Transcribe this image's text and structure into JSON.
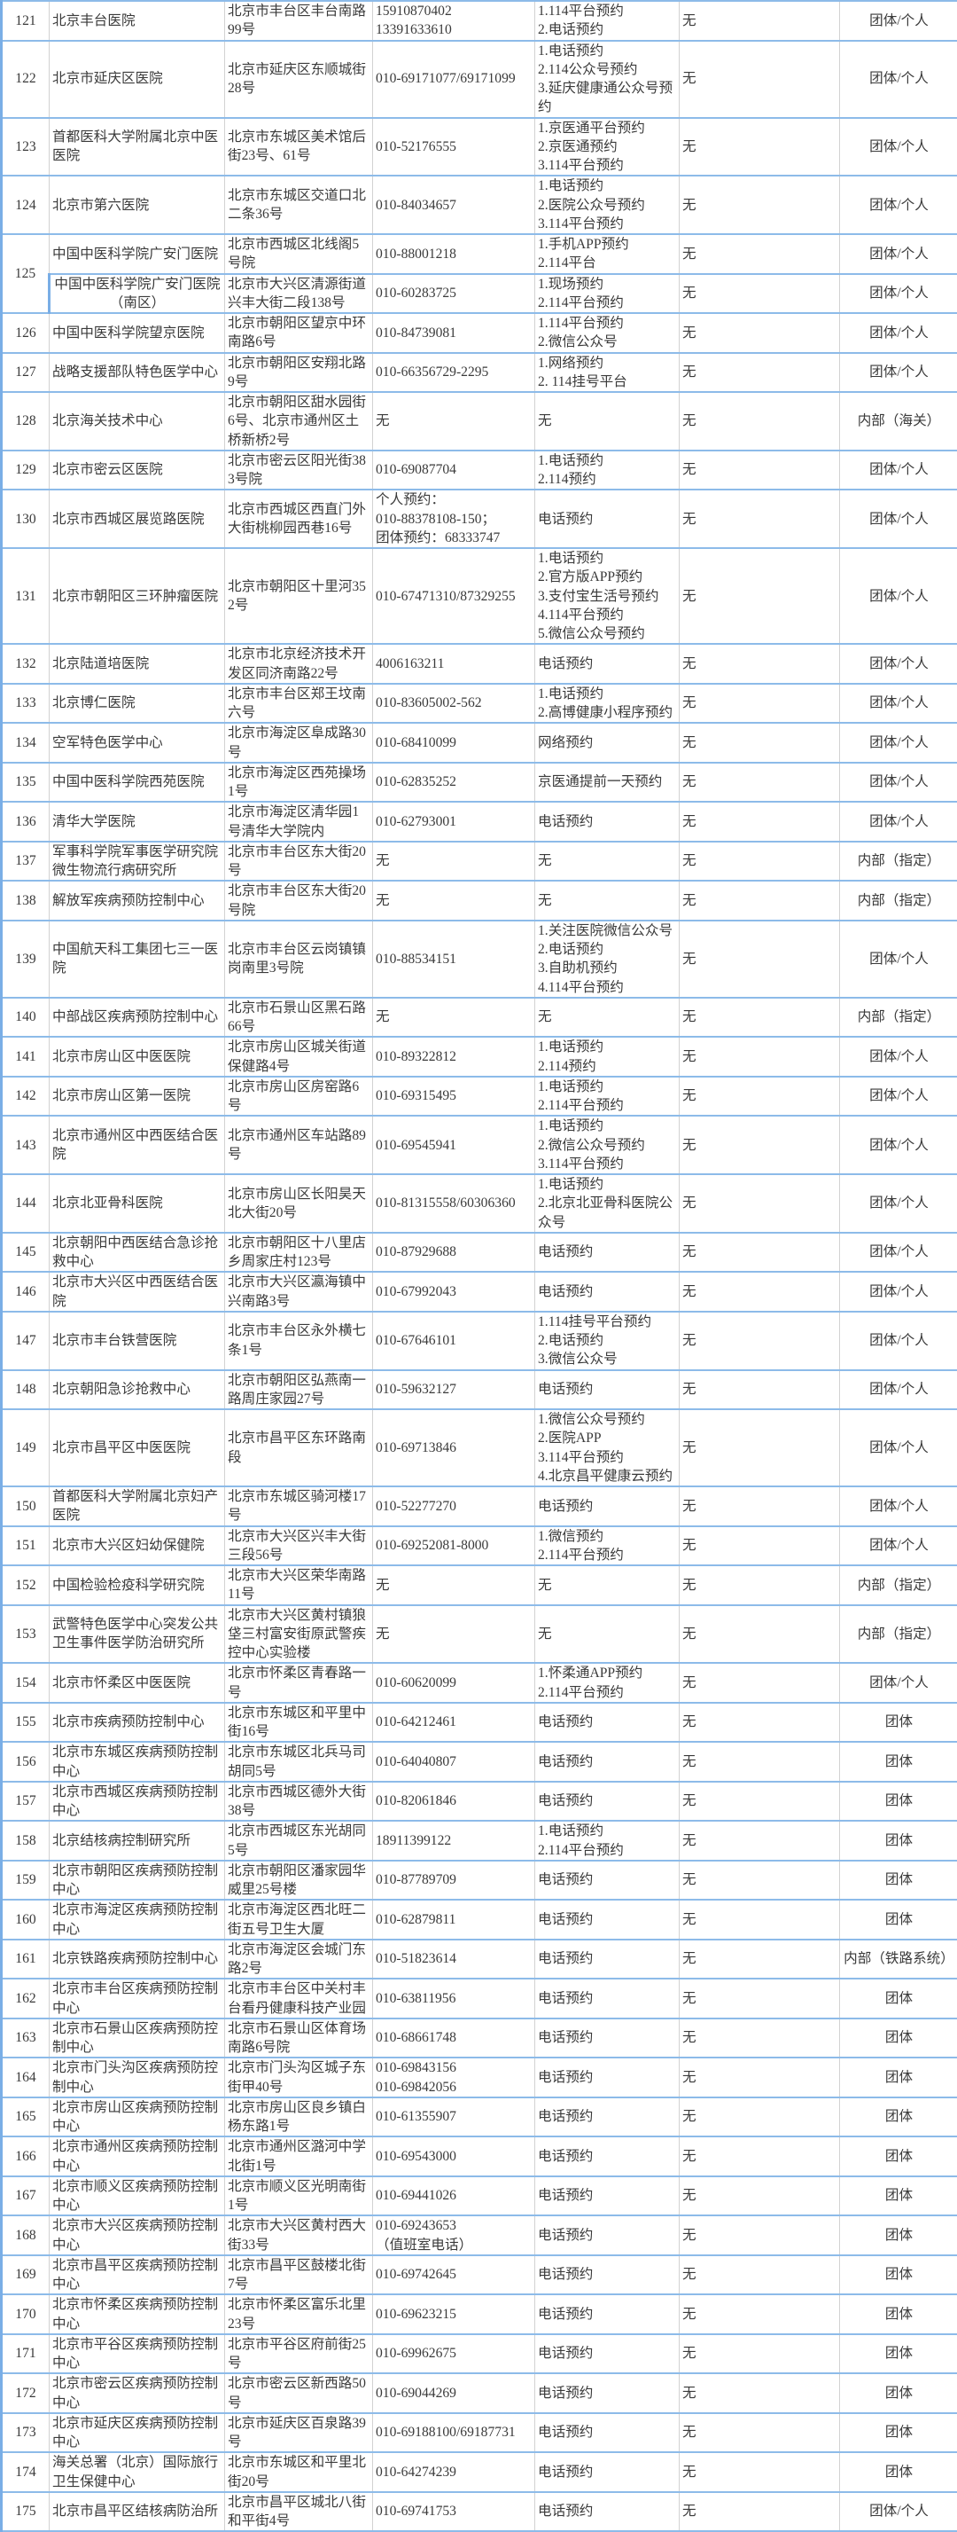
{
  "colors": {
    "row_border": "#8dbbe9",
    "col_border": "#d2d2d2",
    "text": "#3a3a3a"
  },
  "rows": [
    {
      "no": "121",
      "name": "北京丰台医院",
      "address": "北京市丰台区丰台南路99号",
      "phone": "15910870402\n13391633610",
      "booking": "1.114平台预约\n2.电话预约",
      "other": "无",
      "type": "团体/个人"
    },
    {
      "no": "122",
      "name": "北京市延庆区医院",
      "address": "北京市延庆区东顺城街28号",
      "phone": "010-69171077/69171099",
      "booking": "1.电话预约\n2.114公众号预约\n3.延庆健康通公众号预约",
      "other": "无",
      "type": "团体/个人"
    },
    {
      "no": "123",
      "name": "首都医科大学附属北京中医医院",
      "address": "北京市东城区美术馆后街23号、61号",
      "phone": "010-52176555",
      "booking": "1.京医通平台预约\n2.京医通预约\n3.114平台预约",
      "other": "无",
      "type": "团体/个人"
    },
    {
      "no": "124",
      "name": "北京市第六医院",
      "address": "北京市东城区交道口北二条36号",
      "phone": "010-84034657",
      "booking": "1.电话预约\n2.医院公众号预约\n3.114平台预约",
      "other": "无",
      "type": "团体/个人"
    },
    {
      "no": "125",
      "name": "中国中医科学院广安门医院",
      "address": "北京市西城区北线阁5号院",
      "phone": "010-88001218",
      "booking": "1.手机APP预约\n2.114平台",
      "other": "无",
      "type": "团体/个人"
    },
    {
      "no": null,
      "name": "中国中医科学院广安门医院（南区）",
      "address": "北京市大兴区清源街道兴丰大街二段138号",
      "phone": "010-60283725",
      "booking": "1.现场预约\n2.114平台预约",
      "other": "无",
      "type": "团体/个人"
    },
    {
      "no": "126",
      "name": "中国中医科学院望京医院",
      "address": "北京市朝阳区望京中环南路6号",
      "phone": "010-84739081",
      "booking": "1.114平台预约\n2.微信公众号",
      "other": "无",
      "type": "团体/个人"
    },
    {
      "no": "127",
      "name": "战略支援部队特色医学中心",
      "address": "北京市朝阳区安翔北路9号",
      "phone": "010-66356729-2295",
      "booking": "1.网络预约\n2. 114挂号平台",
      "other": "无",
      "type": "团体/个人"
    },
    {
      "no": "128",
      "name": "北京海关技术中心",
      "address": "北京市朝阳区甜水园街6号、北京市通州区土桥新桥2号",
      "phone": "无",
      "booking": "无",
      "other": "无",
      "type": "内部（海关）"
    },
    {
      "no": "129",
      "name": "北京市密云区医院",
      "address": "北京市密云区阳光街383号院",
      "phone": "010-69087704",
      "booking": "1.电话预约\n2.114预约",
      "other": "无",
      "type": "团体/个人"
    },
    {
      "no": "130",
      "name": "北京市西城区展览路医院",
      "address": "北京市西城区西直门外大街桃柳园西巷16号",
      "phone": "个人预约：\n010-88378108-150；\n团体预约：68333747",
      "booking": "电话预约",
      "other": "无",
      "type": "团体/个人"
    },
    {
      "no": "131",
      "name": "北京市朝阳区三环肿瘤医院",
      "address": "北京市朝阳区十里河352号",
      "phone": "010-67471310/87329255",
      "booking": "1.电话预约\n2.官方版APP预约\n3.支付宝生活号预约\n4.114平台预约\n5.微信公众号预约",
      "other": "无",
      "type": "团体/个人"
    },
    {
      "no": "132",
      "name": "北京陆道培医院",
      "address": "北京市北京经济技术开发区同济南路22号",
      "phone": "4006163211",
      "booking": "电话预约",
      "other": "无",
      "type": "团体/个人"
    },
    {
      "no": "133",
      "name": "北京博仁医院",
      "address": "北京市丰台区郑王坟南六号",
      "phone": "010-83605002-562",
      "booking": "1.电话预约\n2.高博健康小程序预约",
      "other": "无",
      "type": "团体/个人"
    },
    {
      "no": "134",
      "name": "空军特色医学中心",
      "address": "北京市海淀区阜成路30号",
      "phone": "010-68410099",
      "booking": "网络预约",
      "other": "无",
      "type": "团体/个人"
    },
    {
      "no": "135",
      "name": "中国中医科学院西苑医院",
      "address": "北京市海淀区西苑操场1号",
      "phone": "010-62835252",
      "booking": "京医通提前一天预约",
      "other": "无",
      "type": "团体/个人"
    },
    {
      "no": "136",
      "name": "清华大学医院",
      "address": "北京市海淀区清华园1号清华大学院内",
      "phone": "010-62793001",
      "booking": "电话预约",
      "other": "无",
      "type": "团体/个人"
    },
    {
      "no": "137",
      "name": "军事科学院军事医学研究院微生物流行病研究所",
      "address": "北京市丰台区东大街20号",
      "phone": "无",
      "booking": "无",
      "other": "无",
      "type": "内部（指定）"
    },
    {
      "no": "138",
      "name": "解放军疾病预防控制中心",
      "address": "北京市丰台区东大街20号院",
      "phone": "无",
      "booking": "无",
      "other": "无",
      "type": "内部（指定）"
    },
    {
      "no": "139",
      "name": "中国航天科工集团七三一医院",
      "address": "北京市丰台区云岗镇镇岗南里3号院",
      "phone": "010-88534151",
      "booking": "1.关注医院微信公众号\n2.电话预约\n3.自助机预约\n4.114平台预约",
      "other": "无",
      "type": "团体/个人"
    },
    {
      "no": "140",
      "name": "中部战区疾病预防控制中心",
      "address": "北京市石景山区黑石路66号",
      "phone": "无",
      "booking": "无",
      "other": "无",
      "type": "内部（指定）"
    },
    {
      "no": "141",
      "name": "北京市房山区中医医院",
      "address": "北京市房山区城关街道保健路4号",
      "phone": "010-89322812",
      "booking": "1.电话预约\n2.114预约",
      "other": "无",
      "type": "团体/个人"
    },
    {
      "no": "142",
      "name": "北京市房山区第一医院",
      "address": "北京市房山区房窑路6号",
      "phone": "010-69315495",
      "booking": "1.电话预约\n2.114平台预约",
      "other": "无",
      "type": "团体/个人"
    },
    {
      "no": "143",
      "name": "北京市通州区中西医结合医院",
      "address": "北京市通州区车站路89号",
      "phone": "010-69545941",
      "booking": "1.电话预约\n2.微信公众号预约\n3.114平台预约",
      "other": "无",
      "type": "团体/个人"
    },
    {
      "no": "144",
      "name": "北京北亚骨科医院",
      "address": "北京市房山区长阳昊天北大街20号",
      "phone": "010-81315558/60306360",
      "booking": "1.电话预约\n2.北京北亚骨科医院公众号",
      "other": "无",
      "type": "团体/个人"
    },
    {
      "no": "145",
      "name": "北京朝阳中西医结合急诊抢救中心",
      "address": "北京市朝阳区十八里店乡周家庄村123号",
      "phone": "010-87929688",
      "booking": "电话预约",
      "other": "无",
      "type": "团体/个人"
    },
    {
      "no": "146",
      "name": "北京市大兴区中西医结合医院",
      "address": "北京市大兴区瀛海镇中兴南路3号",
      "phone": "010-67992043",
      "booking": "电话预约",
      "other": "无",
      "type": "团体/个人"
    },
    {
      "no": "147",
      "name": "北京市丰台铁营医院",
      "address": "北京市丰台区永外横七条1号",
      "phone": "010-67646101",
      "booking": "1.114挂号平台预约\n2.电话预约\n3.微信公众号",
      "other": "无",
      "type": "团体/个人"
    },
    {
      "no": "148",
      "name": "北京朝阳急诊抢救中心",
      "address": "北京市朝阳区弘燕南一路周庄家园27号",
      "phone": "010-59632127",
      "booking": "电话预约",
      "other": "无",
      "type": "团体/个人"
    },
    {
      "no": "149",
      "name": "北京市昌平区中医医院",
      "address": "北京市昌平区东环路南段",
      "phone": "010-69713846",
      "booking": "1.微信公众号预约\n2.医院APP\n3.114平台预约\n4.北京昌平健康云预约",
      "other": "无",
      "type": "团体/个人"
    },
    {
      "no": "150",
      "name": "首都医科大学附属北京妇产医院",
      "address": "北京市东城区骑河楼17号",
      "phone": "010-52277270",
      "booking": "电话预约",
      "other": "无",
      "type": "团体/个人"
    },
    {
      "no": "151",
      "name": "北京市大兴区妇幼保健院",
      "address": "北京市大兴区兴丰大街三段56号",
      "phone": "010-69252081-8000",
      "booking": "1.微信预约\n2.114平台预约",
      "other": "无",
      "type": "团体/个人"
    },
    {
      "no": "152",
      "name": "中国检验检疫科学研究院",
      "address": "北京市大兴区荣华南路11号",
      "phone": "无",
      "booking": "无",
      "other": "无",
      "type": "内部（指定）"
    },
    {
      "no": "153",
      "name": "武警特色医学中心突发公共卫生事件医学防治研究所",
      "address": "北京市大兴区黄村镇狼垡三村富安街原武警疾控中心实验楼",
      "phone": "无",
      "booking": "无",
      "other": "无",
      "type": "内部（指定）"
    },
    {
      "no": "154",
      "name": "北京市怀柔区中医医院",
      "address": "北京市怀柔区青春路一号",
      "phone": "010-60620099",
      "booking": "1.怀柔通APP预约\n2.114平台预约",
      "other": "无",
      "type": "团体/个人"
    },
    {
      "no": "155",
      "name": "北京市疾病预防控制中心",
      "address": "北京市东城区和平里中街16号",
      "phone": "010-64212461",
      "booking": "电话预约",
      "other": "无",
      "type": "团体"
    },
    {
      "no": "156",
      "name": "北京市东城区疾病预防控制中心",
      "address": "北京市东城区北兵马司胡同5号",
      "phone": "010-64040807",
      "booking": "电话预约",
      "other": "无",
      "type": "团体"
    },
    {
      "no": "157",
      "name": "北京市西城区疾病预防控制中心",
      "address": "北京市西城区德外大街38号",
      "phone": "010-82061846",
      "booking": "电话预约",
      "other": "无",
      "type": "团体"
    },
    {
      "no": "158",
      "name": "北京结核病控制研究所",
      "address": "北京市西城区东光胡同5号",
      "phone": "18911399122",
      "booking": "1.电话预约\n2.114平台预约",
      "other": "无",
      "type": "团体"
    },
    {
      "no": "159",
      "name": "北京市朝阳区疾病预防控制中心",
      "address": "北京市朝阳区潘家园华威里25号楼",
      "phone": "010-87789709",
      "booking": "电话预约",
      "other": "无",
      "type": "团体"
    },
    {
      "no": "160",
      "name": "北京市海淀区疾病预防控制中心",
      "address": "北京市海淀区西北旺二街五号卫生大厦",
      "phone": "010-62879811",
      "booking": "电话预约",
      "other": "无",
      "type": "团体"
    },
    {
      "no": "161",
      "name": "北京铁路疾病预防控制中心",
      "address": "北京市海淀区会城门东路2号",
      "phone": "010-51823614",
      "booking": "电话预约",
      "other": "无",
      "type": "内部（铁路系统）"
    },
    {
      "no": "162",
      "name": "北京市丰台区疾病预防控制中心",
      "address": "北京市丰台区中关村丰台看丹健康科技产业园",
      "phone": "010-63811956",
      "booking": "电话预约",
      "other": "无",
      "type": "团体"
    },
    {
      "no": "163",
      "name": "北京市石景山区疾病预防控制中心",
      "address": "北京市石景山区体育场南路6号院",
      "phone": "010-68661748",
      "booking": "电话预约",
      "other": "无",
      "type": "团体"
    },
    {
      "no": "164",
      "name": "北京市门头沟区疾病预防控制中心",
      "address": "北京市门头沟区城子东街甲40号",
      "phone": "010-69843156\n010-69842056",
      "booking": "电话预约",
      "other": "无",
      "type": "团体"
    },
    {
      "no": "165",
      "name": "北京市房山区疾病预防控制中心",
      "address": "北京市房山区良乡镇白杨东路1号",
      "phone": "010-61355907",
      "booking": "电话预约",
      "other": "无",
      "type": "团体"
    },
    {
      "no": "166",
      "name": "北京市通州区疾病预防控制中心",
      "address": "北京市通州区潞河中学北街1号",
      "phone": "010-69543000",
      "booking": "电话预约",
      "other": "无",
      "type": "团体"
    },
    {
      "no": "167",
      "name": "北京市顺义区疾病预防控制中心",
      "address": "北京市顺义区光明南街1号",
      "phone": "010-69441026",
      "booking": "电话预约",
      "other": "无",
      "type": "团体"
    },
    {
      "no": "168",
      "name": "北京市大兴区疾病预防控制中心",
      "address": "北京市大兴区黄村西大街33号",
      "phone": "010-69243653\n（值班室电话）",
      "booking": "电话预约",
      "other": "无",
      "type": "团体"
    },
    {
      "no": "169",
      "name": "北京市昌平区疾病预防控制中心",
      "address": "北京市昌平区鼓楼北街7号",
      "phone": "010-69742645",
      "booking": "电话预约",
      "other": "无",
      "type": "团体"
    },
    {
      "no": "170",
      "name": "北京市怀柔区疾病预防控制中心",
      "address": "北京市怀柔区富乐北里23号",
      "phone": "010-69623215",
      "booking": "电话预约",
      "other": "无",
      "type": "团体"
    },
    {
      "no": "171",
      "name": "北京市平谷区疾病预防控制中心",
      "address": "北京市平谷区府前街25号",
      "phone": "010-69962675",
      "booking": "电话预约",
      "other": "无",
      "type": "团体"
    },
    {
      "no": "172",
      "name": "北京市密云区疾病预防控制中心",
      "address": "北京市密云区新西路50号",
      "phone": "010-69044269",
      "booking": "电话预约",
      "other": "无",
      "type": "团体"
    },
    {
      "no": "173",
      "name": "北京市延庆区疾病预防控制中心",
      "address": "北京市延庆区百泉路39号",
      "phone": "010-69188100/69187731",
      "booking": "电话预约",
      "other": "无",
      "type": "团体"
    },
    {
      "no": "174",
      "name": "海关总署（北京）国际旅行卫生保健中心",
      "address": "北京市东城区和平里北街20号",
      "phone": "010-64274239",
      "booking": "电话预约",
      "other": "无",
      "type": "团体"
    },
    {
      "no": "175",
      "name": "北京市昌平区结核病防治所",
      "address": "北京市昌平区城北八街和平街4号",
      "phone": "010-69741753",
      "booking": "电话预约",
      "other": "无",
      "type": "团体/个人"
    }
  ]
}
